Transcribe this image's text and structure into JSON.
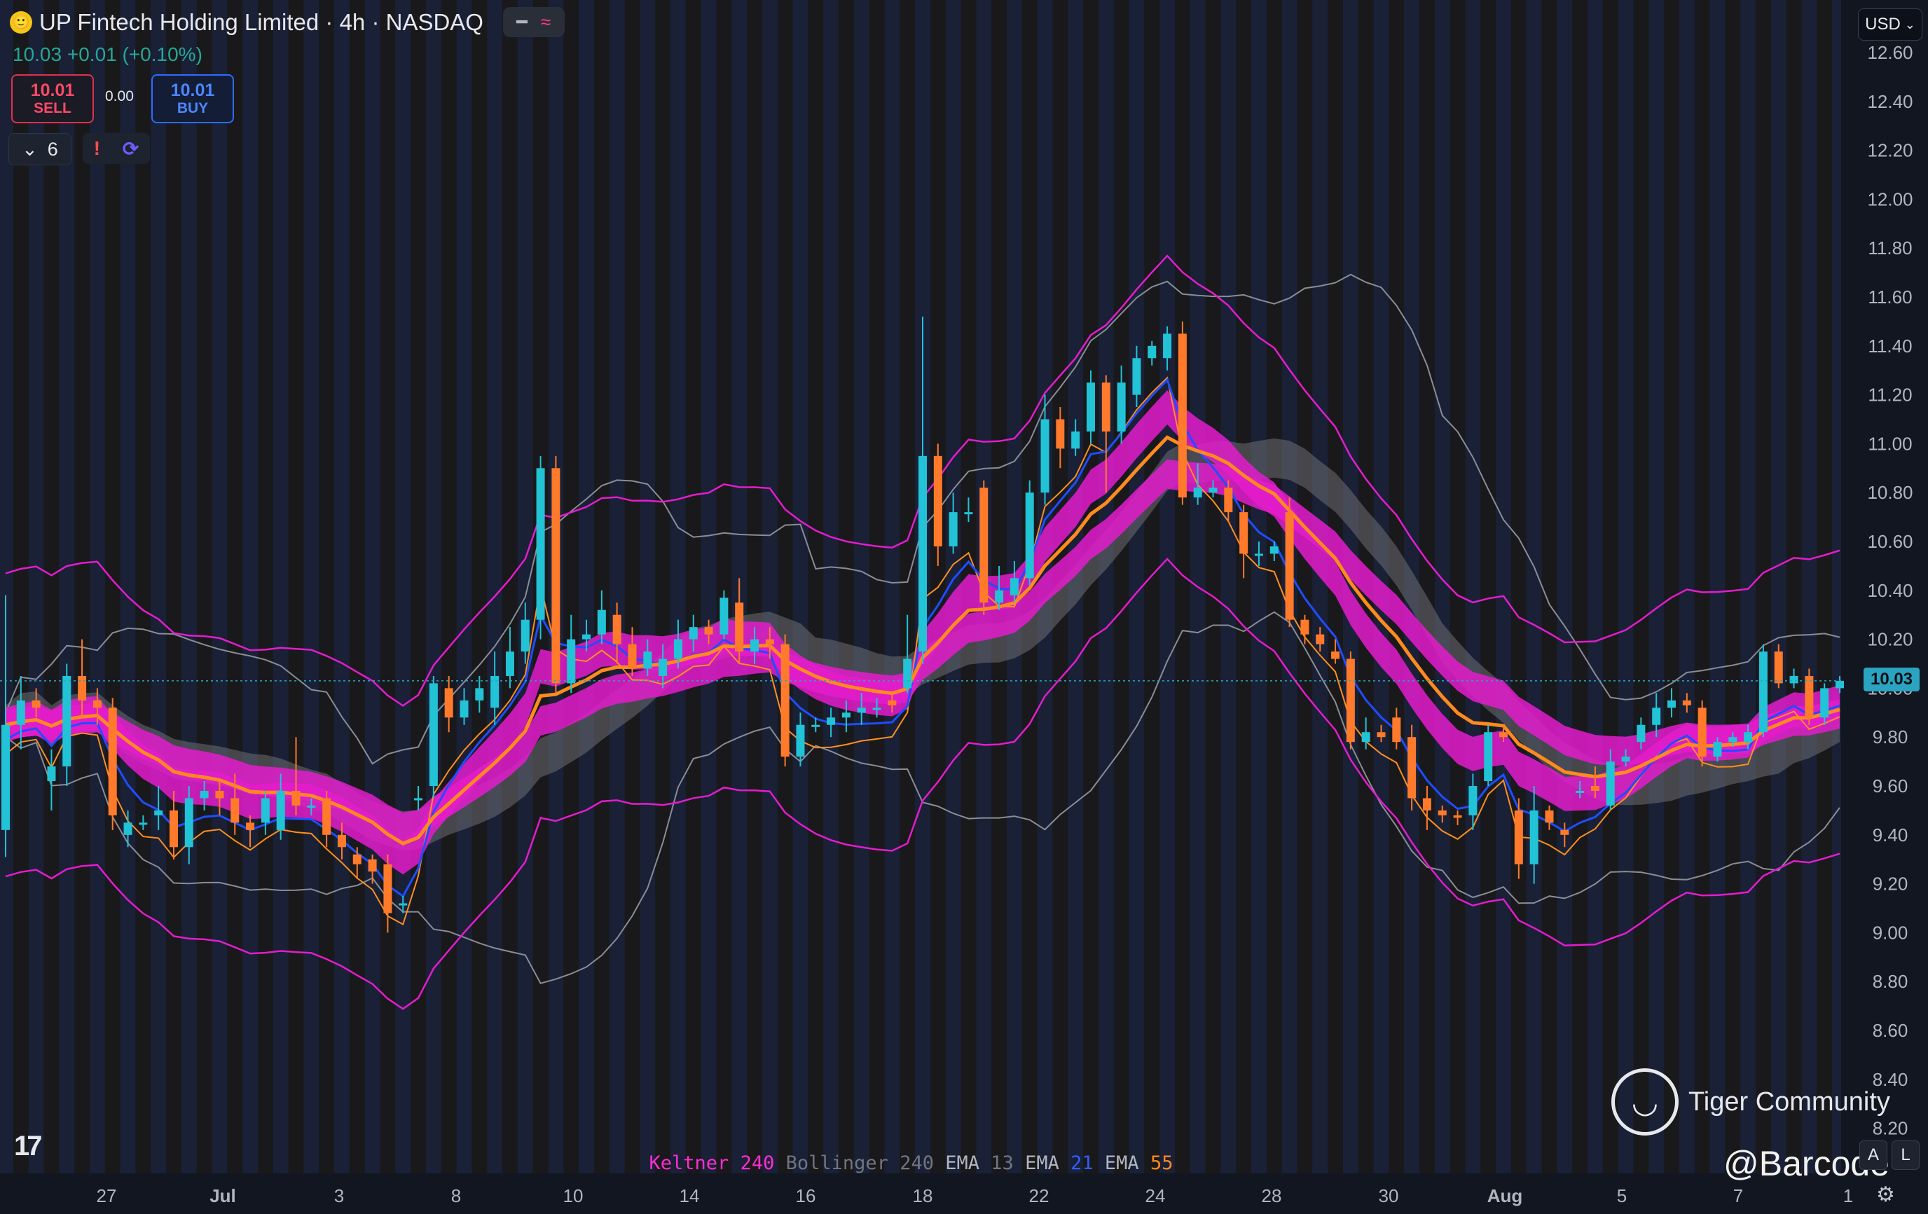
{
  "header": {
    "symbol_title": "UP Fintech Holding Limited · 4h · NASDAQ",
    "coin_glyph": "🙂",
    "collapse_glyph": "━",
    "indicator_glyph": "≈"
  },
  "quote": {
    "last": "10.03",
    "change": "+0.01",
    "change_pct": "(+0.10%)"
  },
  "trade": {
    "sell_price": "10.01",
    "sell_label": "SELL",
    "spread": "0.00",
    "buy_price": "10.01",
    "buy_label": "BUY"
  },
  "indicators_toggle": {
    "chevron": "⌄",
    "count": "6"
  },
  "alerts": {
    "warning_glyph": "!",
    "sync_glyph": "⟳"
  },
  "currency": {
    "label": "USD",
    "chevron": "⌄"
  },
  "current_price_label": "10.03",
  "legend": [
    {
      "name": "Keltner",
      "param": "240",
      "name_color": "#ff2dd4",
      "param_color": "#ff2dd4"
    },
    {
      "name": "Bollinger",
      "param": "240",
      "name_color": "#707580",
      "param_color": "#707580"
    },
    {
      "name": "EMA",
      "param": "13",
      "name_color": "#b2b5be",
      "param_color": "#707580"
    },
    {
      "name": "EMA",
      "param": "21",
      "name_color": "#b2b5be",
      "param_color": "#2f5fff"
    },
    {
      "name": "EMA",
      "param": "55",
      "name_color": "#b2b5be",
      "param_color": "#ff8a1f"
    }
  ],
  "watermark": {
    "community": "Tiger Community",
    "author": "@Barcode"
  },
  "controls": {
    "auto": "A",
    "log": "L",
    "settings_glyph": "⚙"
  },
  "colors": {
    "up": "#22c3d6",
    "down": "#ff7a2b",
    "keltner": "#e41ccd",
    "bollinger": "#8a8d96",
    "ema13": "#ff8f1f",
    "ema21": "#1f4dff",
    "ema55": "#ff8a1f"
  },
  "chart_data": {
    "type": "candlestick",
    "symbol": "UP Fintech Holding Limited",
    "interval": "4h",
    "exchange": "NASDAQ",
    "y_ticks": [
      "12.60",
      "12.40",
      "12.20",
      "12.00",
      "11.80",
      "11.60",
      "11.40",
      "11.20",
      "11.00",
      "10.80",
      "10.60",
      "10.40",
      "10.20",
      "10.00",
      "9.80",
      "9.60",
      "9.40",
      "9.20",
      "9.00",
      "8.80",
      "8.60",
      "8.40",
      "8.20"
    ],
    "x_ticks": [
      "27",
      "Jul",
      "3",
      "8",
      "10",
      "14",
      "16",
      "18",
      "22",
      "24",
      "28",
      "30",
      "Aug",
      "5",
      "7",
      "1"
    ],
    "ylim": [
      8.15,
      12.65
    ],
    "current_price": 10.03,
    "candles": [
      [
        9.42,
        9.85,
        10.38,
        9.31
      ],
      [
        9.85,
        9.95,
        10.05,
        9.75
      ],
      [
        9.95,
        9.92,
        10.0,
        9.88
      ],
      [
        9.62,
        9.68,
        9.75,
        9.5
      ],
      [
        9.68,
        10.05,
        10.1,
        9.6
      ],
      [
        10.05,
        9.95,
        10.2,
        9.88
      ],
      [
        9.95,
        9.92,
        10.0,
        9.85
      ],
      [
        9.92,
        9.48,
        9.96,
        9.42
      ],
      [
        9.4,
        9.45,
        9.5,
        9.35
      ],
      [
        9.45,
        9.45,
        9.48,
        9.42
      ],
      [
        9.48,
        9.5,
        9.6,
        9.42
      ],
      [
        9.5,
        9.35,
        9.58,
        9.3
      ],
      [
        9.35,
        9.55,
        9.6,
        9.28
      ],
      [
        9.55,
        9.58,
        9.62,
        9.5
      ],
      [
        9.58,
        9.55,
        9.62,
        9.48
      ],
      [
        9.55,
        9.45,
        9.65,
        9.4
      ],
      [
        9.45,
        9.42,
        9.48,
        9.35
      ],
      [
        9.45,
        9.55,
        9.58,
        9.4
      ],
      [
        9.42,
        9.58,
        9.65,
        9.38
      ],
      [
        9.58,
        9.52,
        9.8,
        9.48
      ],
      [
        9.52,
        9.52,
        9.55,
        9.48
      ],
      [
        9.55,
        9.4,
        9.58,
        9.35
      ],
      [
        9.4,
        9.35,
        9.45,
        9.3
      ],
      [
        9.32,
        9.28,
        9.35,
        9.22
      ],
      [
        9.3,
        9.25,
        9.32,
        9.2
      ],
      [
        9.28,
        9.08,
        9.32,
        9.0
      ],
      [
        9.12,
        9.12,
        9.15,
        9.08
      ],
      [
        9.55,
        9.55,
        9.6,
        9.5
      ],
      [
        9.6,
        10.02,
        10.05,
        9.55
      ],
      [
        10.0,
        9.88,
        10.05,
        9.82
      ],
      [
        9.88,
        9.95,
        10.0,
        9.85
      ],
      [
        9.95,
        10.0,
        10.05,
        9.9
      ],
      [
        9.92,
        10.05,
        10.15,
        9.85
      ],
      [
        10.05,
        10.15,
        10.25,
        10.0
      ],
      [
        10.15,
        10.28,
        10.35,
        10.1
      ],
      [
        10.28,
        10.9,
        10.95,
        10.2
      ],
      [
        10.9,
        10.02,
        10.95,
        9.98
      ],
      [
        10.02,
        10.2,
        10.3,
        9.98
      ],
      [
        10.2,
        10.22,
        10.28,
        10.15
      ],
      [
        10.22,
        10.32,
        10.4,
        10.18
      ],
      [
        10.3,
        10.18,
        10.35,
        10.1
      ],
      [
        10.18,
        10.08,
        10.25,
        10.05
      ],
      [
        10.08,
        10.15,
        10.2,
        10.05
      ],
      [
        10.05,
        10.12,
        10.18,
        10.0
      ],
      [
        10.12,
        10.2,
        10.28,
        10.08
      ],
      [
        10.2,
        10.25,
        10.3,
        10.15
      ],
      [
        10.25,
        10.22,
        10.28,
        10.18
      ],
      [
        10.22,
        10.37,
        10.4,
        10.2
      ],
      [
        10.35,
        10.15,
        10.45,
        10.1
      ],
      [
        10.15,
        10.2,
        10.25,
        10.1
      ],
      [
        10.2,
        10.18,
        10.25,
        10.12
      ],
      [
        10.18,
        9.72,
        10.22,
        9.68
      ],
      [
        9.72,
        9.85,
        9.9,
        9.68
      ],
      [
        9.85,
        9.85,
        9.88,
        9.82
      ],
      [
        9.85,
        9.88,
        9.92,
        9.8
      ],
      [
        9.88,
        9.9,
        9.95,
        9.82
      ],
      [
        9.9,
        9.92,
        9.98,
        9.85
      ],
      [
        9.92,
        9.92,
        9.96,
        9.88
      ],
      [
        9.95,
        9.93,
        9.98,
        9.9
      ],
      [
        10.0,
        10.12,
        10.3,
        9.98
      ],
      [
        10.15,
        10.95,
        11.52,
        10.1
      ],
      [
        10.95,
        10.58,
        11.0,
        10.5
      ],
      [
        10.58,
        10.72,
        10.8,
        10.55
      ],
      [
        10.72,
        10.72,
        10.78,
        10.68
      ],
      [
        10.82,
        10.35,
        10.85,
        10.3
      ],
      [
        10.35,
        10.4,
        10.5,
        10.32
      ],
      [
        10.38,
        10.45,
        10.52,
        10.35
      ],
      [
        10.45,
        10.8,
        10.85,
        10.42
      ],
      [
        10.8,
        11.1,
        11.2,
        10.75
      ],
      [
        11.1,
        10.98,
        11.15,
        10.9
      ],
      [
        10.98,
        11.05,
        11.1,
        10.95
      ],
      [
        11.05,
        11.25,
        11.3,
        11.0
      ],
      [
        11.25,
        11.05,
        11.28,
        10.8
      ],
      [
        11.05,
        11.25,
        11.32,
        11.0
      ],
      [
        11.2,
        11.35,
        11.4,
        11.15
      ],
      [
        11.35,
        11.4,
        11.42,
        11.32
      ],
      [
        11.35,
        11.45,
        11.48,
        11.3
      ],
      [
        11.45,
        10.78,
        11.5,
        10.75
      ],
      [
        10.78,
        10.82,
        10.92,
        10.75
      ],
      [
        10.8,
        10.82,
        10.85,
        10.78
      ],
      [
        10.82,
        10.72,
        10.85,
        10.68
      ],
      [
        10.72,
        10.55,
        10.75,
        10.45
      ],
      [
        10.55,
        10.55,
        10.6,
        10.5
      ],
      [
        10.55,
        10.58,
        10.6,
        10.52
      ],
      [
        10.72,
        10.28,
        10.78,
        10.25
      ],
      [
        10.28,
        10.22,
        10.3,
        10.18
      ],
      [
        10.22,
        10.18,
        10.25,
        10.15
      ],
      [
        10.15,
        10.12,
        10.2,
        10.1
      ],
      [
        10.12,
        9.78,
        10.15,
        9.75
      ],
      [
        9.78,
        9.82,
        9.88,
        9.75
      ],
      [
        9.82,
        9.8,
        9.85,
        9.78
      ],
      [
        9.88,
        9.78,
        9.92,
        9.75
      ],
      [
        9.8,
        9.55,
        9.85,
        9.5
      ],
      [
        9.55,
        9.5,
        9.6,
        9.42
      ],
      [
        9.5,
        9.48,
        9.52,
        9.45
      ],
      [
        9.48,
        9.47,
        9.5,
        9.44
      ],
      [
        9.48,
        9.6,
        9.65,
        9.42
      ],
      [
        9.62,
        9.82,
        9.85,
        9.6
      ],
      [
        9.82,
        9.8,
        9.85,
        9.78
      ],
      [
        9.5,
        9.28,
        9.55,
        9.22
      ],
      [
        9.28,
        9.5,
        9.6,
        9.2
      ],
      [
        9.5,
        9.45,
        9.52,
        9.42
      ],
      [
        9.42,
        9.4,
        9.45,
        9.35
      ],
      [
        9.58,
        9.58,
        9.62,
        9.55
      ],
      [
        9.6,
        9.58,
        9.68,
        9.55
      ],
      [
        9.52,
        9.7,
        9.75,
        9.5
      ],
      [
        9.7,
        9.72,
        9.75,
        9.68
      ],
      [
        9.78,
        9.85,
        9.88,
        9.75
      ],
      [
        9.85,
        9.92,
        9.98,
        9.8
      ],
      [
        9.92,
        9.95,
        10.0,
        9.88
      ],
      [
        9.95,
        9.93,
        9.98,
        9.9
      ],
      [
        9.92,
        9.72,
        9.95,
        9.68
      ],
      [
        9.72,
        9.78,
        9.8,
        9.7
      ],
      [
        9.78,
        9.8,
        9.82,
        9.76
      ],
      [
        9.78,
        9.82,
        9.85,
        9.75
      ],
      [
        9.82,
        10.15,
        10.18,
        9.8
      ],
      [
        10.15,
        10.02,
        10.18,
        10.0
      ],
      [
        10.02,
        10.05,
        10.08,
        10.0
      ],
      [
        10.05,
        9.88,
        10.08,
        9.85
      ],
      [
        9.88,
        10.0,
        10.02,
        9.85
      ],
      [
        10.0,
        10.03,
        10.05,
        9.98
      ]
    ]
  }
}
